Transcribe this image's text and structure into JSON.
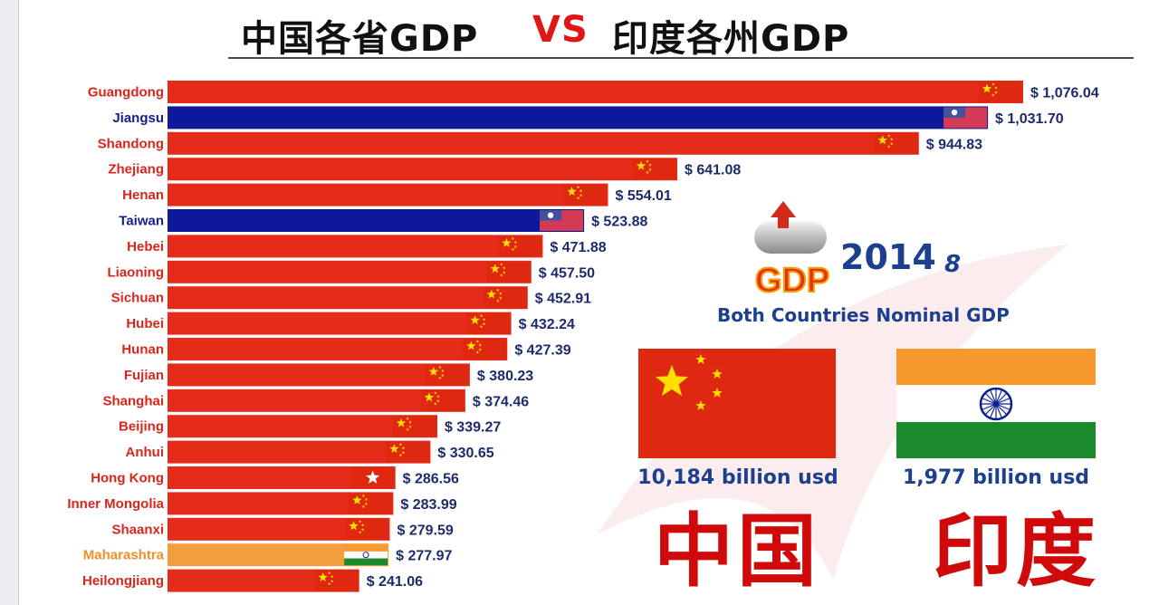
{
  "title": {
    "left": "中国各省GDP",
    "vs": "VS",
    "right": "印度各州GDP"
  },
  "info": {
    "badge_text": "GDP",
    "year": "2014",
    "month": "8",
    "subtitle": "Both Countries Nominal GDP",
    "china_total": "10,184 billion usd",
    "india_total": "1,977 billion usd",
    "china_label": "中国",
    "india_label": "印度"
  },
  "colors": {
    "china_bar": "#e52b1a",
    "taiwan_bar": "#0d189b",
    "india_bar": "#f49d3d",
    "label_red": "#d9261c",
    "label_blue": "#131f8a",
    "label_orange": "#f0902a",
    "value_text": "#1d2b6b"
  },
  "chart_data": {
    "type": "bar",
    "orientation": "horizontal",
    "categories": [
      "Guangdong",
      "Jiangsu",
      "Shandong",
      "Zhejiang",
      "Henan",
      "Taiwan",
      "Hebei",
      "Liaoning",
      "Sichuan",
      "Hubei",
      "Hunan",
      "Fujian",
      "Shanghai",
      "Beijing",
      "Anhui",
      "Hong Kong",
      "Inner Mongolia",
      "Shaanxi",
      "Maharashtra",
      "Heilongjiang"
    ],
    "values": [
      1076.04,
      1031.7,
      944.83,
      641.08,
      554.01,
      523.88,
      471.88,
      457.5,
      452.91,
      432.24,
      427.39,
      380.23,
      374.46,
      339.27,
      330.65,
      286.56,
      283.99,
      279.59,
      277.97,
      241.06
    ],
    "value_labels": [
      "$ 1,076.04",
      "$ 1,031.70",
      "$ 944.83",
      "$ 641.08",
      "$ 554.01",
      "$ 523.88",
      "$ 471.88",
      "$ 457.50",
      "$ 452.91",
      "$ 432.24",
      "$ 427.39",
      "$ 380.23",
      "$ 374.46",
      "$ 339.27",
      "$ 330.65",
      "$ 286.56",
      "$ 283.99",
      "$ 279.59",
      "$ 277.97",
      "$ 241.06"
    ],
    "groups": [
      "china",
      "taiwan",
      "china",
      "china",
      "china",
      "taiwan",
      "china",
      "china",
      "china",
      "china",
      "china",
      "china",
      "china",
      "china",
      "china",
      "hongkong",
      "china",
      "china",
      "india",
      "china"
    ],
    "xlim": [
      0,
      1100
    ],
    "grid": false
  }
}
